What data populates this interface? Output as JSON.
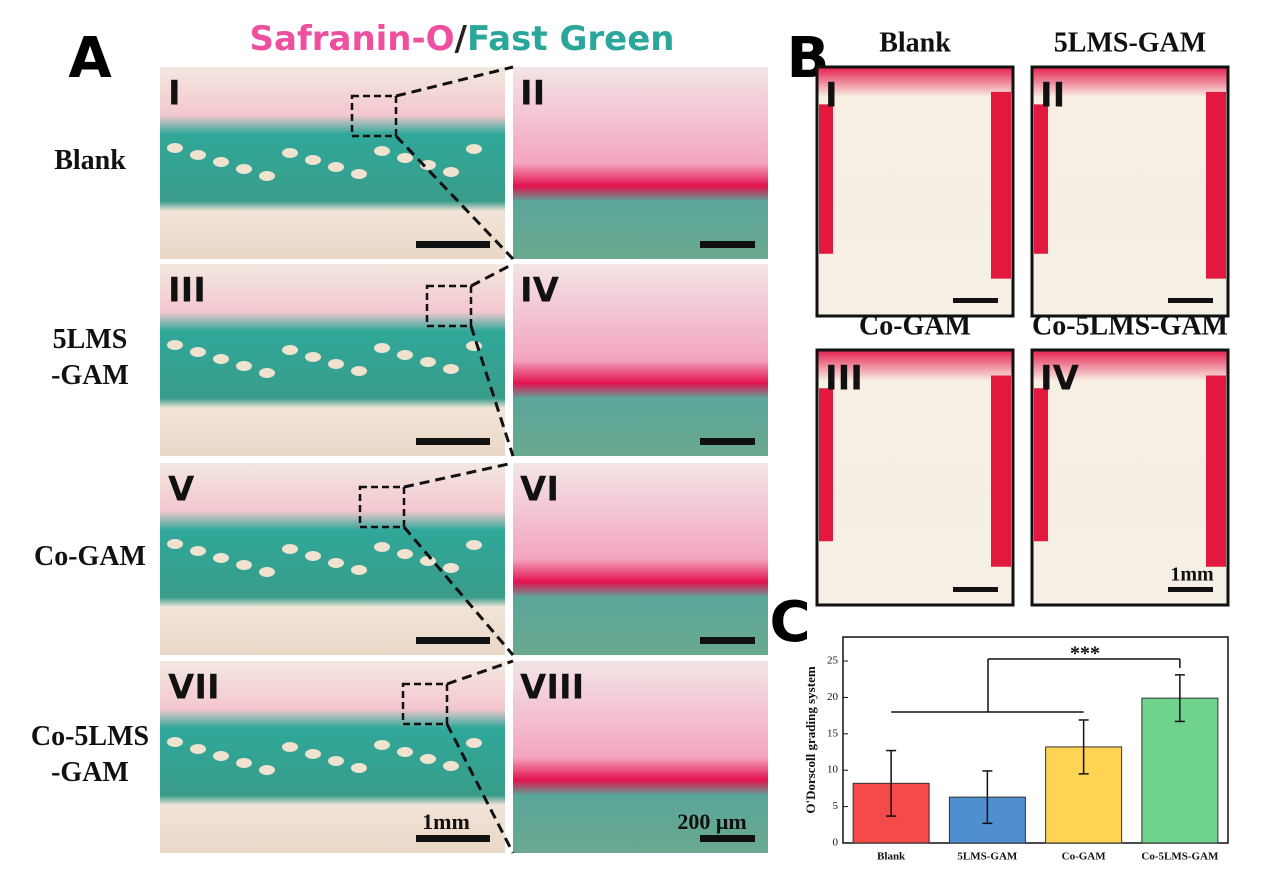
{
  "panel_a": {
    "label": "A",
    "title_parts": [
      "Safranin-O",
      "/",
      "Fast Green"
    ],
    "rows": [
      {
        "label": [
          "Blank"
        ],
        "left": "I",
        "right": "II"
      },
      {
        "label": [
          "5LMS",
          "-GAM"
        ],
        "left": "III",
        "right": "IV"
      },
      {
        "label": [
          "Co-GAM"
        ],
        "left": "V",
        "right": "VI"
      },
      {
        "label": [
          "Co-5LMS",
          "-GAM"
        ],
        "left": "VII",
        "right": "VIII"
      }
    ],
    "scale_left": "1mm",
    "scale_right": "200 μm"
  },
  "panel_b": {
    "label": "B",
    "panels": [
      {
        "title": "Blank",
        "numeral": "I"
      },
      {
        "title": "5LMS-GAM",
        "numeral": "II"
      },
      {
        "title": "Co-GAM",
        "numeral": "III"
      },
      {
        "title": "Co-5LMS-GAM",
        "numeral": "IV"
      }
    ],
    "scale": "1mm"
  },
  "panel_c_label": "C",
  "chart_data": {
    "type": "bar",
    "ylabel": "O'Dorscoll grading system",
    "categories": [
      "Blank",
      "5LMS-GAM",
      "Co-GAM",
      "Co-5LMS-GAM"
    ],
    "series": [
      {
        "values": [
          8.2,
          6.3,
          13.2,
          19.9
        ],
        "errors": [
          4.5,
          3.6,
          3.7,
          3.2
        ],
        "colors": [
          "#f44a4a",
          "#4f8fcf",
          "#ffd454",
          "#6fd38e"
        ]
      }
    ],
    "ylim": [
      0,
      28.3
    ],
    "yticks": [
      0,
      5,
      10,
      15,
      20,
      25
    ],
    "annotation": "***"
  }
}
